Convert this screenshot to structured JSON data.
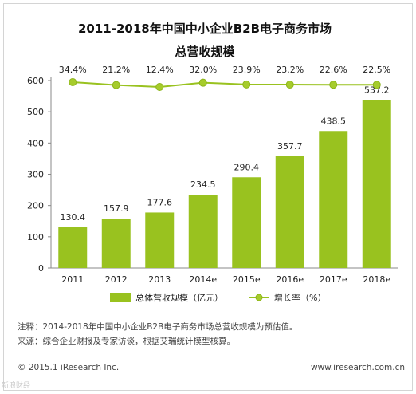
{
  "title_line1": "2011-2018年中国中小企业B2B电子商务市场",
  "title_line2": "总营收规模",
  "chart_data": {
    "type": "bar",
    "categories": [
      "2011",
      "2012",
      "2013",
      "2014e",
      "2015e",
      "2016e",
      "2017e",
      "2018e"
    ],
    "series": [
      {
        "name": "总体营收规模（亿元）",
        "type": "bar",
        "values": [
          130.4,
          157.9,
          177.6,
          234.5,
          290.4,
          357.7,
          438.5,
          537.2
        ],
        "labels": [
          "130.4",
          "157.9",
          "177.6",
          "234.5",
          "290.4",
          "357.7",
          "438.5",
          "537.2"
        ]
      },
      {
        "name": "增长率（%）",
        "type": "line",
        "values": [
          34.4,
          21.2,
          12.4,
          32.0,
          23.9,
          23.2,
          22.6,
          22.5
        ],
        "labels": [
          "34.4%",
          "21.2%",
          "12.4%",
          "32.0%",
          "23.9%",
          "23.2%",
          "22.6%",
          "22.5%"
        ]
      }
    ],
    "ylim": [
      0,
      600
    ],
    "yticks": [
      "0",
      "100",
      "200",
      "300",
      "400",
      "500",
      "600"
    ],
    "legend_position": "bottom",
    "colors": {
      "bar": "#99c21f",
      "line": "#99c21f",
      "marker": "#a6cc2c"
    }
  },
  "notes": {
    "note": "注释：2014-2018年中国中小企业B2B电子商务市场总营收规模为预估值。",
    "source": "来源：综合企业财报及专家访谈，根据艾瑞统计模型核算。"
  },
  "footer": {
    "copyright": "© 2015.1 iResearch Inc.",
    "website": "www.iresearch.com.cn"
  },
  "watermark": "新浪财经"
}
